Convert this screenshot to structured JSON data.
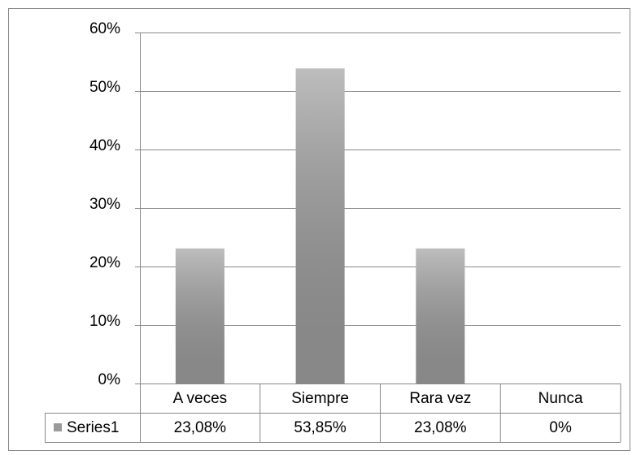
{
  "chart_data": {
    "type": "bar",
    "categories": [
      "A veces",
      "Siempre",
      "Rara vez",
      "Nunca"
    ],
    "series": [
      {
        "name": "Series1",
        "color": "#9a9a9a",
        "values": [
          23.08,
          53.85,
          23.08,
          0
        ],
        "value_labels": [
          "23,08%",
          "53,85%",
          "23,08%",
          "0%"
        ]
      }
    ],
    "ylim": [
      0,
      60
    ],
    "yticks": [
      {
        "value": 0,
        "label": "0%"
      },
      {
        "value": 10,
        "label": "10%"
      },
      {
        "value": 20,
        "label": "20%"
      },
      {
        "value": 30,
        "label": "30%"
      },
      {
        "value": 40,
        "label": "40%"
      },
      {
        "value": 50,
        "label": "50%"
      },
      {
        "value": 60,
        "label": "60%"
      }
    ],
    "grid": true
  }
}
